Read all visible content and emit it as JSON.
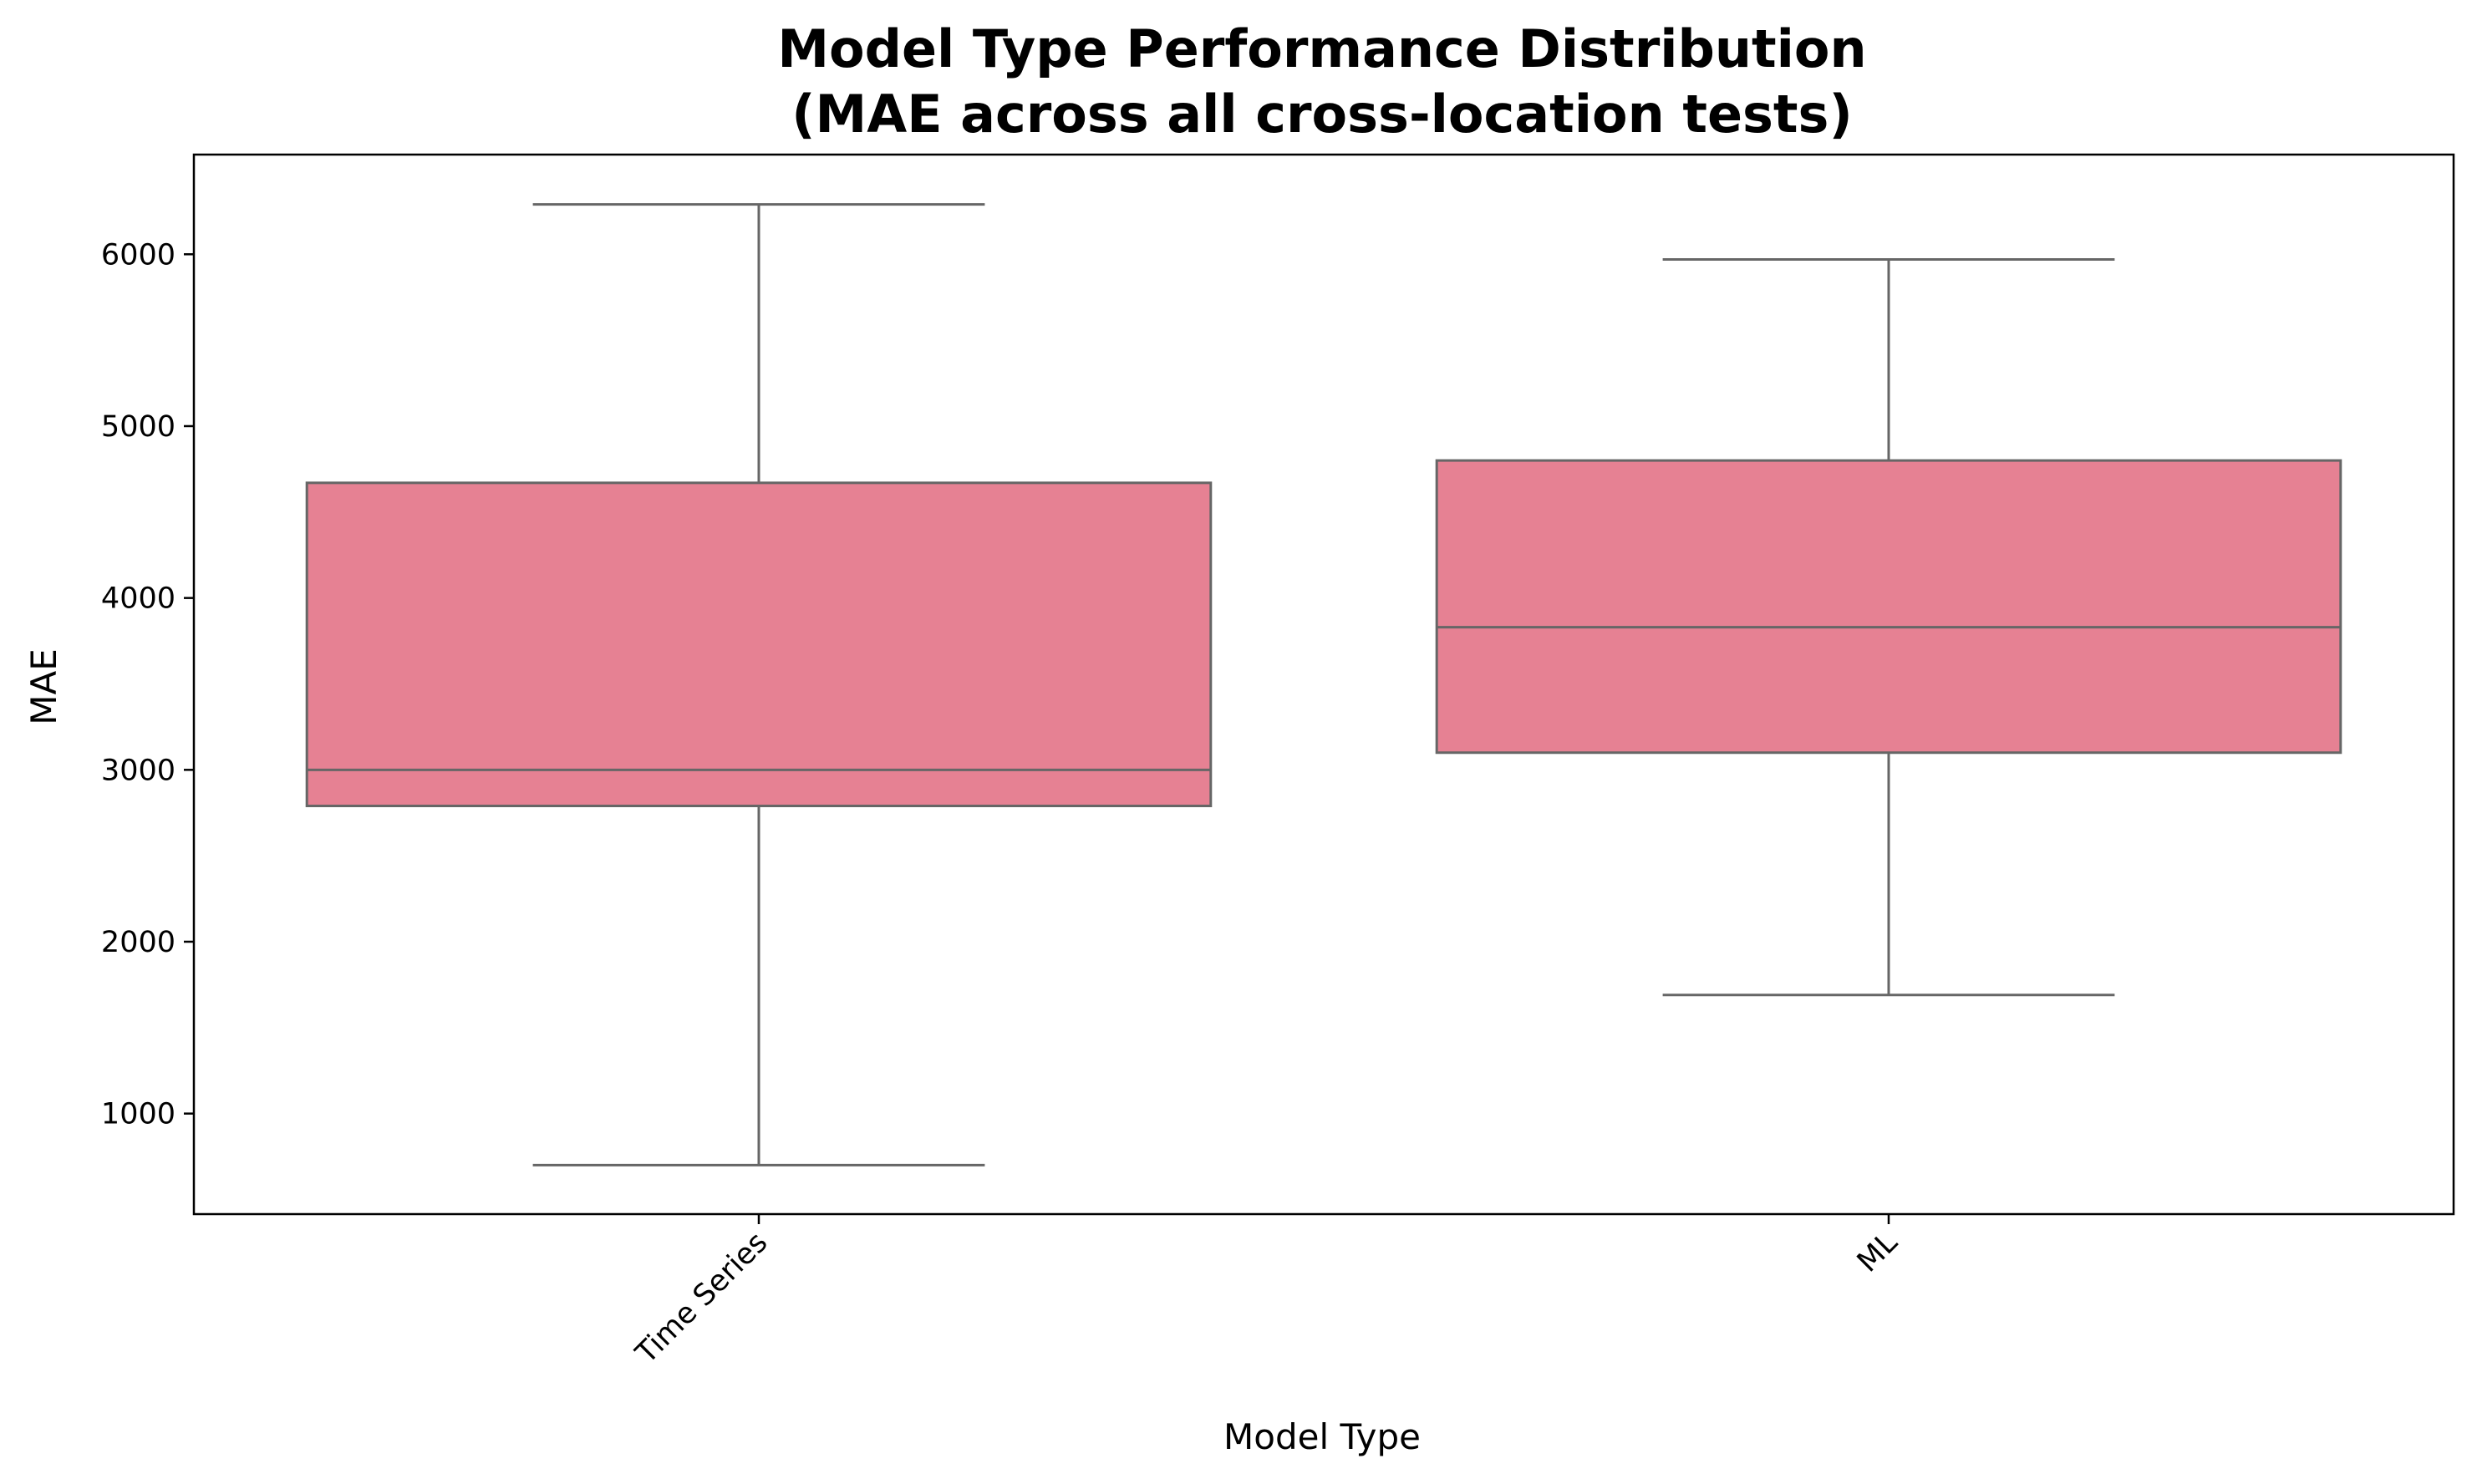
{
  "chart_data": {
    "type": "box",
    "title": "Model Type Performance Distribution\n(MAE across all cross-location tests)",
    "xlabel": "Model Type",
    "ylabel": "MAE",
    "categories": [
      "Time Series",
      "ML"
    ],
    "boxes": [
      {
        "category": "Time Series",
        "whisker_low": 700,
        "q1": 2790,
        "median": 3000,
        "q3": 4670,
        "whisker_high": 6290
      },
      {
        "category": "ML",
        "whisker_low": 1690,
        "q1": 3100,
        "median": 3830,
        "q3": 4800,
        "whisker_high": 5970
      }
    ],
    "yticks": [
      1000,
      2000,
      3000,
      4000,
      5000,
      6000
    ],
    "ylim": [
      415,
      6580
    ],
    "grid": false,
    "legend": "none",
    "colors": {
      "box_fill": "#e68193",
      "line": "#666666",
      "axis": "#000000"
    }
  }
}
